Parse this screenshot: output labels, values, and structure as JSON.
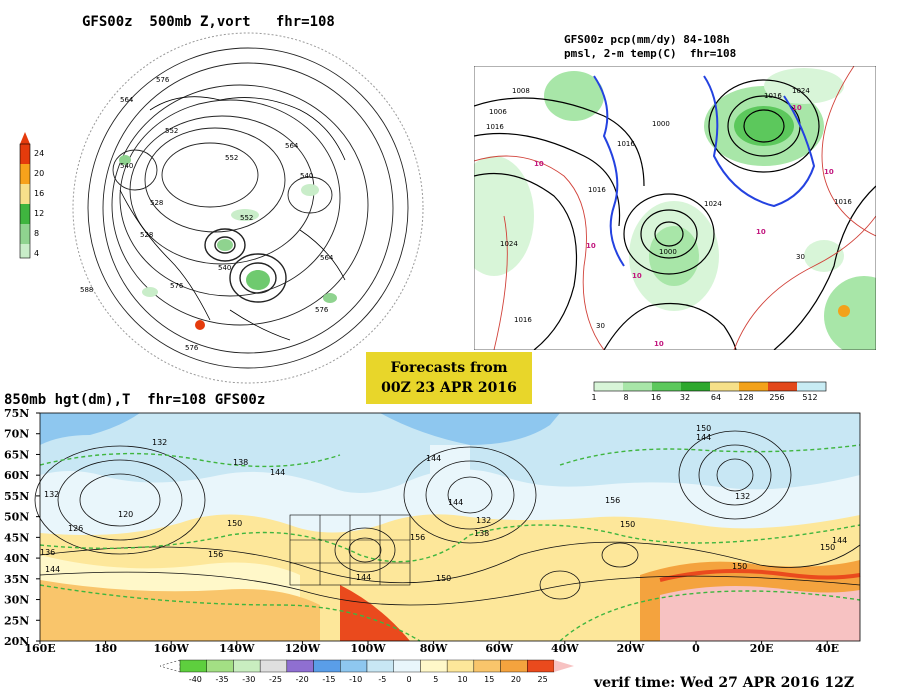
{
  "panel_500mb": {
    "title": "GFS00z  500mb Z,vort   fhr=108",
    "colorbar": {
      "labels": [
        "24",
        "20",
        "16",
        "12",
        "8",
        "4"
      ],
      "colors": [
        "#e53b0c",
        "#f7a21b",
        "#f7e08b",
        "#3fb53f",
        "#8fd38f",
        "#c9edc9"
      ]
    },
    "contour_labels": [
      "576",
      "564",
      "552",
      "540",
      "528",
      "528",
      "564",
      "552",
      "540",
      "552",
      "540",
      "576",
      "564",
      "588",
      "576",
      "576"
    ]
  },
  "panel_precip": {
    "title_line1": "GFS00z pcp(mm/dy) 84-108h",
    "title_line2": "pmsl, 2-m temp(C)  fhr=108",
    "colorbar": {
      "labels": [
        "1",
        "8",
        "16",
        "32",
        "64",
        "128",
        "256",
        "512"
      ],
      "colors": [
        "#d8f5d8",
        "#a8e6a8",
        "#5cc85c",
        "#2ea82e",
        "#f6e089",
        "#f3a21b",
        "#e2481b",
        "#c8ecf4"
      ]
    },
    "isobar_labels": [
      "1008",
      "1006",
      "1016",
      "1000",
      "1016",
      "1016",
      "1024",
      "1000",
      "1016",
      "1024",
      "1016",
      "1016",
      "1024"
    ],
    "temp_labels": [
      "10",
      "10",
      "10",
      "10",
      "10",
      "10",
      "10"
    ],
    "misc_labels": [
      "30",
      "30"
    ]
  },
  "badge": {
    "line1": "Forecasts from",
    "line2": "00Z 23 APR 2016"
  },
  "panel_850mb": {
    "title": "850mb hgt(dm),T  fhr=108 GFS00z",
    "lat_labels": [
      "75N",
      "70N",
      "65N",
      "60N",
      "55N",
      "50N",
      "45N",
      "40N",
      "35N",
      "30N",
      "25N",
      "20N"
    ],
    "lon_labels": [
      "160E",
      "180",
      "160W",
      "140W",
      "120W",
      "100W",
      "80W",
      "60W",
      "40W",
      "20W",
      "0",
      "20E",
      "40E"
    ],
    "height_labels": [
      "132",
      "132",
      "120",
      "126",
      "136",
      "144",
      "138",
      "144",
      "150",
      "156",
      "144",
      "150",
      "156",
      "144",
      "132",
      "138",
      "144",
      "150",
      "156",
      "150",
      "150",
      "144",
      "150",
      "132",
      "144"
    ],
    "colorbar": {
      "labels": [
        "-40",
        "-35",
        "-30",
        "-25",
        "-20",
        "-15",
        "-10",
        "-5",
        "0",
        "5",
        "10",
        "15",
        "20",
        "25"
      ],
      "colors": [
        "#5ecf3e",
        "#a3df84",
        "#c9eec0",
        "#dfdfdf",
        "#8f6fd1",
        "#5a9ee8",
        "#8ec7ef",
        "#c8e7f4",
        "#e9f6fb",
        "#fff8c9",
        "#fde79a",
        "#f9c56b",
        "#f4a33e",
        "#ea4a1d"
      ]
    }
  },
  "footer": {
    "verif": "verif time: Wed 27 APR 2016 12Z"
  }
}
